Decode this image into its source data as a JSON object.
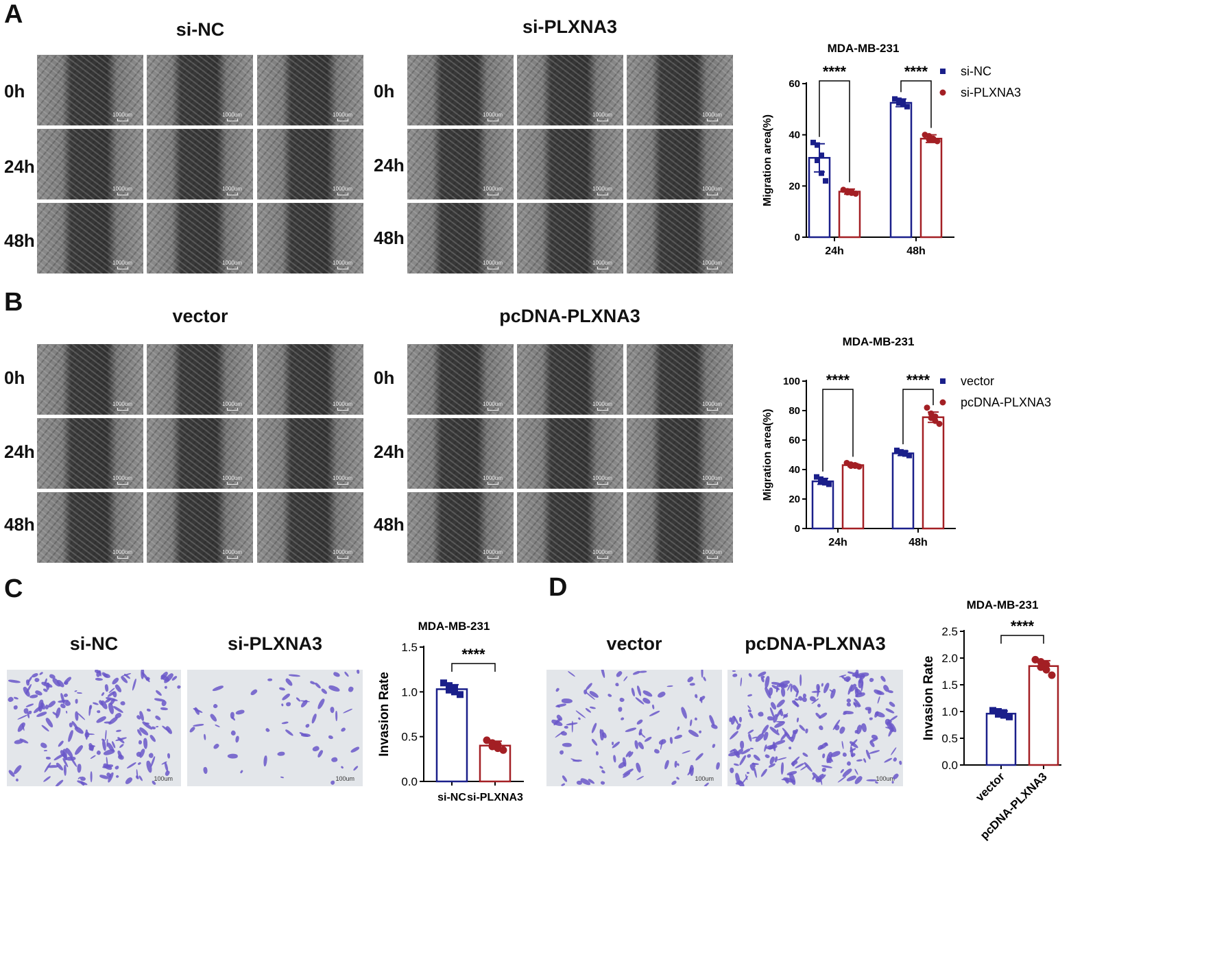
{
  "panels": {
    "A": {
      "label": "A",
      "group_left": "si-NC",
      "group_right": "si-PLXNA3",
      "times": [
        "0h",
        "24h",
        "48h"
      ],
      "scale_bar": "1000um"
    },
    "B": {
      "label": "B",
      "group_left": "vector",
      "group_right": "pcDNA-PLXNA3",
      "times": [
        "0h",
        "24h",
        "48h"
      ],
      "scale_bar": "1000um"
    },
    "C": {
      "label": "C",
      "group_left": "si-NC",
      "group_right": "si-PLXNA3",
      "scale_bar": "100um"
    },
    "D": {
      "label": "D",
      "group_left": "vector",
      "group_right": "pcDNA-PLXNA3",
      "scale_bar": "100um"
    }
  },
  "colors": {
    "control": "#1a1f8a",
    "treatment": "#a31f24"
  },
  "chart_data": [
    {
      "id": "A",
      "type": "bar",
      "title": "MDA-MB-231",
      "ylabel": "Migration area(%)",
      "xlabel": "",
      "categories": [
        "24h",
        "48h"
      ],
      "ylim": [
        0,
        60
      ],
      "yticks": [
        0,
        20,
        40,
        60
      ],
      "legend_position": "top-right",
      "significance": [
        "****",
        "****"
      ],
      "series": [
        {
          "name": "si-NC",
          "values": [
            31,
            52.5
          ],
          "errors": [
            5.5,
            1.5
          ],
          "points": [
            [
              37,
              36,
              32,
              30,
              25,
              22
            ],
            [
              54,
              53.5,
              53,
              52.5,
              52,
              51
            ]
          ]
        },
        {
          "name": "si-PLXNA3",
          "values": [
            17.8,
            38.5
          ],
          "errors": [
            1,
            1.5
          ],
          "points": [
            [
              18.5,
              18,
              17.8,
              17.5,
              17.3,
              17
            ],
            [
              40,
              39.5,
              38.5,
              38.2,
              38,
              37.5
            ]
          ]
        }
      ]
    },
    {
      "id": "B",
      "type": "bar",
      "title": "MDA-MB-231",
      "ylabel": "Migration area(%)",
      "xlabel": "",
      "categories": [
        "24h",
        "48h"
      ],
      "ylim": [
        0,
        100
      ],
      "yticks": [
        0,
        20,
        40,
        60,
        80,
        100
      ],
      "legend_position": "top-right",
      "significance": [
        "****",
        "****"
      ],
      "series": [
        {
          "name": "vector",
          "values": [
            32,
            51
          ],
          "errors": [
            2,
            1.5
          ],
          "points": [
            [
              35,
              33.5,
              32.5,
              32,
              31,
              30
            ],
            [
              53,
              52,
              51.5,
              51,
              50.5,
              49.5
            ]
          ]
        },
        {
          "name": "pcDNA-PLXNA3",
          "values": [
            43,
            75.5
          ],
          "errors": [
            1,
            3.5
          ],
          "points": [
            [
              44.5,
              43.5,
              43,
              42.5,
              42.5,
              42
            ],
            [
              82,
              78,
              76,
              75,
              73,
              71
            ]
          ]
        }
      ]
    },
    {
      "id": "C",
      "type": "bar",
      "title": "MDA-MB-231",
      "ylabel": "Invasion Rate",
      "xlabel": "",
      "categories": [
        "si-NC",
        "si-PLXNA3"
      ],
      "ylim": [
        0,
        1.5
      ],
      "yticks": [
        "0.0",
        "0.5",
        "1.0",
        "1.5"
      ],
      "significance": [
        "****"
      ],
      "series": [
        {
          "name": "Invasion Rate",
          "values": [
            1.03,
            0.4
          ],
          "errors": [
            0.05,
            0.05
          ],
          "points": [
            [
              1.1,
              1.07,
              1.04,
              1.02,
              1.0,
              0.97
            ],
            [
              0.46,
              0.43,
              0.41,
              0.39,
              0.37,
              0.35
            ]
          ]
        }
      ]
    },
    {
      "id": "D",
      "type": "bar",
      "title": "MDA-MB-231",
      "ylabel": "Invasion Rate",
      "xlabel": "",
      "categories": [
        "vector",
        "pcDNA-PLXNA3"
      ],
      "ylim": [
        0,
        2.5
      ],
      "yticks": [
        "0.0",
        "0.5",
        "1.0",
        "1.5",
        "2.0",
        "2.5"
      ],
      "significance": [
        "****"
      ],
      "series": [
        {
          "name": "Invasion Rate",
          "values": [
            0.96,
            1.85
          ],
          "errors": [
            0.05,
            0.1
          ],
          "points": [
            [
              1.02,
              1.0,
              0.98,
              0.95,
              0.93,
              0.9
            ],
            [
              1.97,
              1.93,
              1.88,
              1.83,
              1.78,
              1.68
            ]
          ]
        }
      ]
    }
  ]
}
